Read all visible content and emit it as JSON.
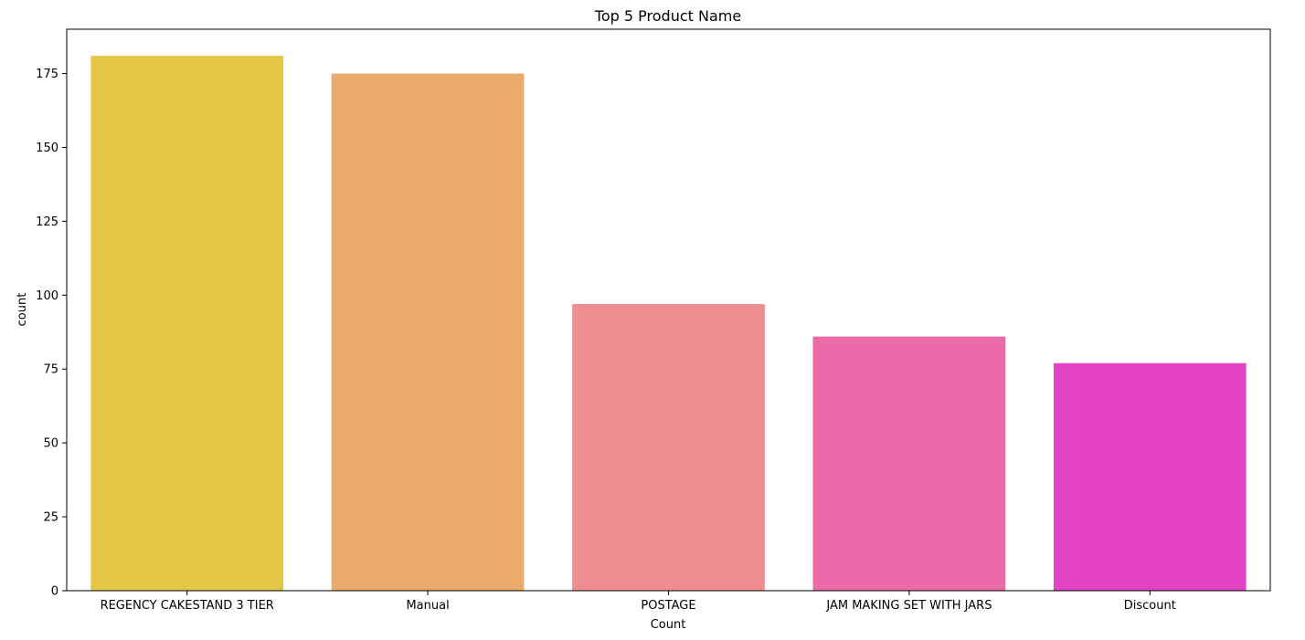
{
  "chart_data": {
    "type": "bar",
    "title": "Top 5 Product Name",
    "xlabel": "Count",
    "ylabel": "count",
    "categories": [
      "REGENCY CAKESTAND 3 TIER",
      "Manual",
      "POSTAGE",
      "JAM MAKING SET WITH JARS",
      "Discount"
    ],
    "values": [
      181,
      175,
      97,
      86,
      77
    ],
    "colors": [
      "#e5c647",
      "#ebaa6b",
      "#ef8e90",
      "#eb6aa8",
      "#e244c4"
    ],
    "ylim": [
      0,
      190
    ],
    "yticks": [
      0,
      25,
      50,
      75,
      100,
      125,
      150,
      175
    ],
    "grid": false,
    "legend": "none"
  }
}
